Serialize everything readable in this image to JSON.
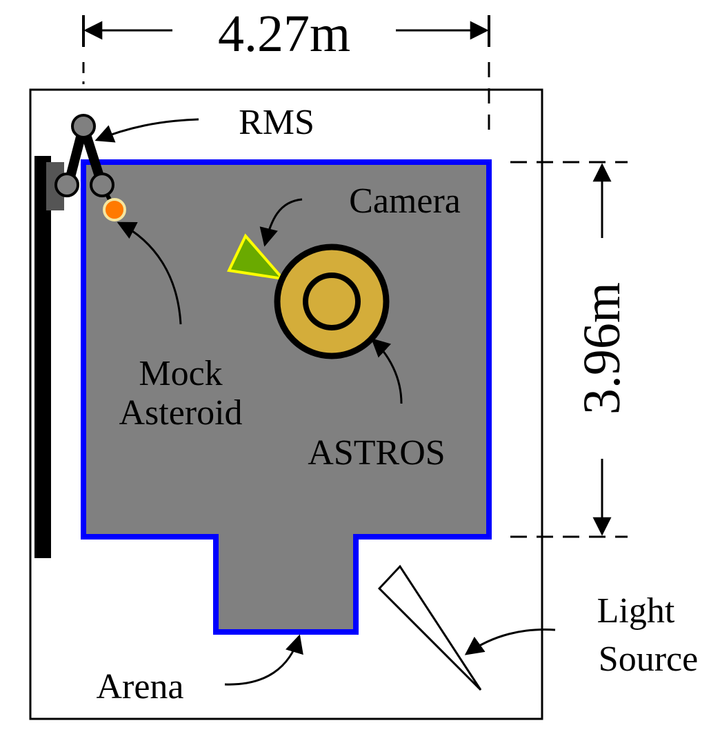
{
  "dimensions": {
    "width": "4.27m",
    "height": "3.96m"
  },
  "labels": {
    "rms": "RMS",
    "camera": "Camera",
    "astros": "ASTROS",
    "mock_asteroid_line1": "Mock",
    "mock_asteroid_line2": "Asteroid",
    "light_source_line1": "Light",
    "light_source_line2": "Source",
    "arena": "Arena"
  },
  "colors": {
    "arena_fill": "#808080",
    "arena_border": "#0000ff",
    "astros_fill": "#d4ad3a",
    "camera_fill": "#6aaa00",
    "camera_border": "#ffff00",
    "asteroid_fill": "#ff7a00",
    "asteroid_border": "#f5e6a0",
    "rms_joint_fill": "#808080",
    "rail": "#000000",
    "mount": "#555555"
  }
}
